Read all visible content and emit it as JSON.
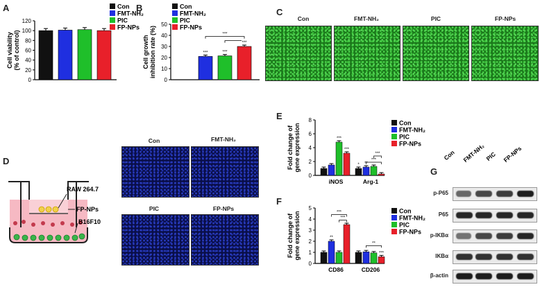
{
  "panels": {
    "a": "A",
    "b": "B",
    "c": "C",
    "d": "D",
    "e": "E",
    "f": "F",
    "g": "G"
  },
  "groups": [
    "Con",
    "FMT-NH₂",
    "PIC",
    "FP-NPs"
  ],
  "colors": {
    "con": "#111111",
    "fmt": "#1f2fe0",
    "pic": "#1fbf2a",
    "fp": "#e8202a"
  },
  "sig": {
    "three": "***",
    "two": "**",
    "one": "*"
  },
  "chart_data": [
    {
      "id": "A",
      "type": "bar",
      "ylabel": "Cell viability\n(% of control)",
      "yticks": [
        0,
        20,
        40,
        60,
        80,
        100,
        120
      ],
      "ylim": [
        0,
        120
      ],
      "categories": [
        "Con",
        "FMT-NH₂",
        "PIC",
        "FP-NPs"
      ],
      "values": [
        100,
        101,
        102,
        100
      ]
    },
    {
      "id": "B",
      "type": "bar",
      "ylabel": "Cell growth\ninhibition rate (%)",
      "yticks": [
        0,
        10,
        20,
        30,
        40,
        50
      ],
      "ylim": [
        0,
        50
      ],
      "categories": [
        "Con",
        "FMT-NH₂",
        "PIC",
        "FP-NPs"
      ],
      "values": [
        0,
        21,
        21.5,
        30
      ],
      "annotations": [
        "***",
        "***",
        "***",
        "***"
      ]
    },
    {
      "id": "E",
      "type": "bar",
      "ylabel": "Fold change of\ngene expression",
      "yticks": [
        0,
        2,
        4,
        6,
        8
      ],
      "ylim": [
        0,
        8
      ],
      "categories": [
        "iNOS",
        "Arg-1"
      ],
      "series": [
        {
          "name": "Con",
          "values": [
            1,
            1
          ]
        },
        {
          "name": "FMT-NH₂",
          "values": [
            1.5,
            1.2
          ]
        },
        {
          "name": "PIC",
          "values": [
            4.8,
            1.3
          ]
        },
        {
          "name": "FP-NPs",
          "values": [
            3.2,
            0.2
          ]
        }
      ],
      "annotations": [
        "***",
        "***",
        "*",
        "**",
        "***",
        "***"
      ]
    },
    {
      "id": "F",
      "type": "bar",
      "ylabel": "Fold change of\ngene expression",
      "yticks": [
        0,
        1,
        2,
        3,
        4,
        5
      ],
      "ylim": [
        0,
        5
      ],
      "categories": [
        "CD86",
        "CD206"
      ],
      "series": [
        {
          "name": "Con",
          "values": [
            1,
            1
          ]
        },
        {
          "name": "FMT-NH₂",
          "values": [
            2,
            1.05
          ]
        },
        {
          "name": "PIC",
          "values": [
            1,
            0.95
          ]
        },
        {
          "name": "FP-NPs",
          "values": [
            3.5,
            0.6
          ]
        }
      ],
      "annotations": [
        "**",
        "***",
        "***",
        "**",
        "***"
      ]
    }
  ],
  "fluor_c": {
    "labels": [
      "Con",
      "FMT-NH₂",
      "PIC",
      "FP-NPs"
    ]
  },
  "fluor_d": {
    "labels": [
      "Con",
      "FMT-NH₂",
      "PIC",
      "FP-NPs"
    ]
  },
  "transwell": {
    "top": "RAW 264.7",
    "mid": "FP-NPs",
    "bottom": "B16F10"
  },
  "blot": {
    "lanes": [
      "Con",
      "FMT-NH₂",
      "PIC",
      "FP-NPs"
    ],
    "rows": [
      "p-P65",
      "P65",
      "p-IKBα",
      "IKBα",
      "β-actin"
    ]
  }
}
